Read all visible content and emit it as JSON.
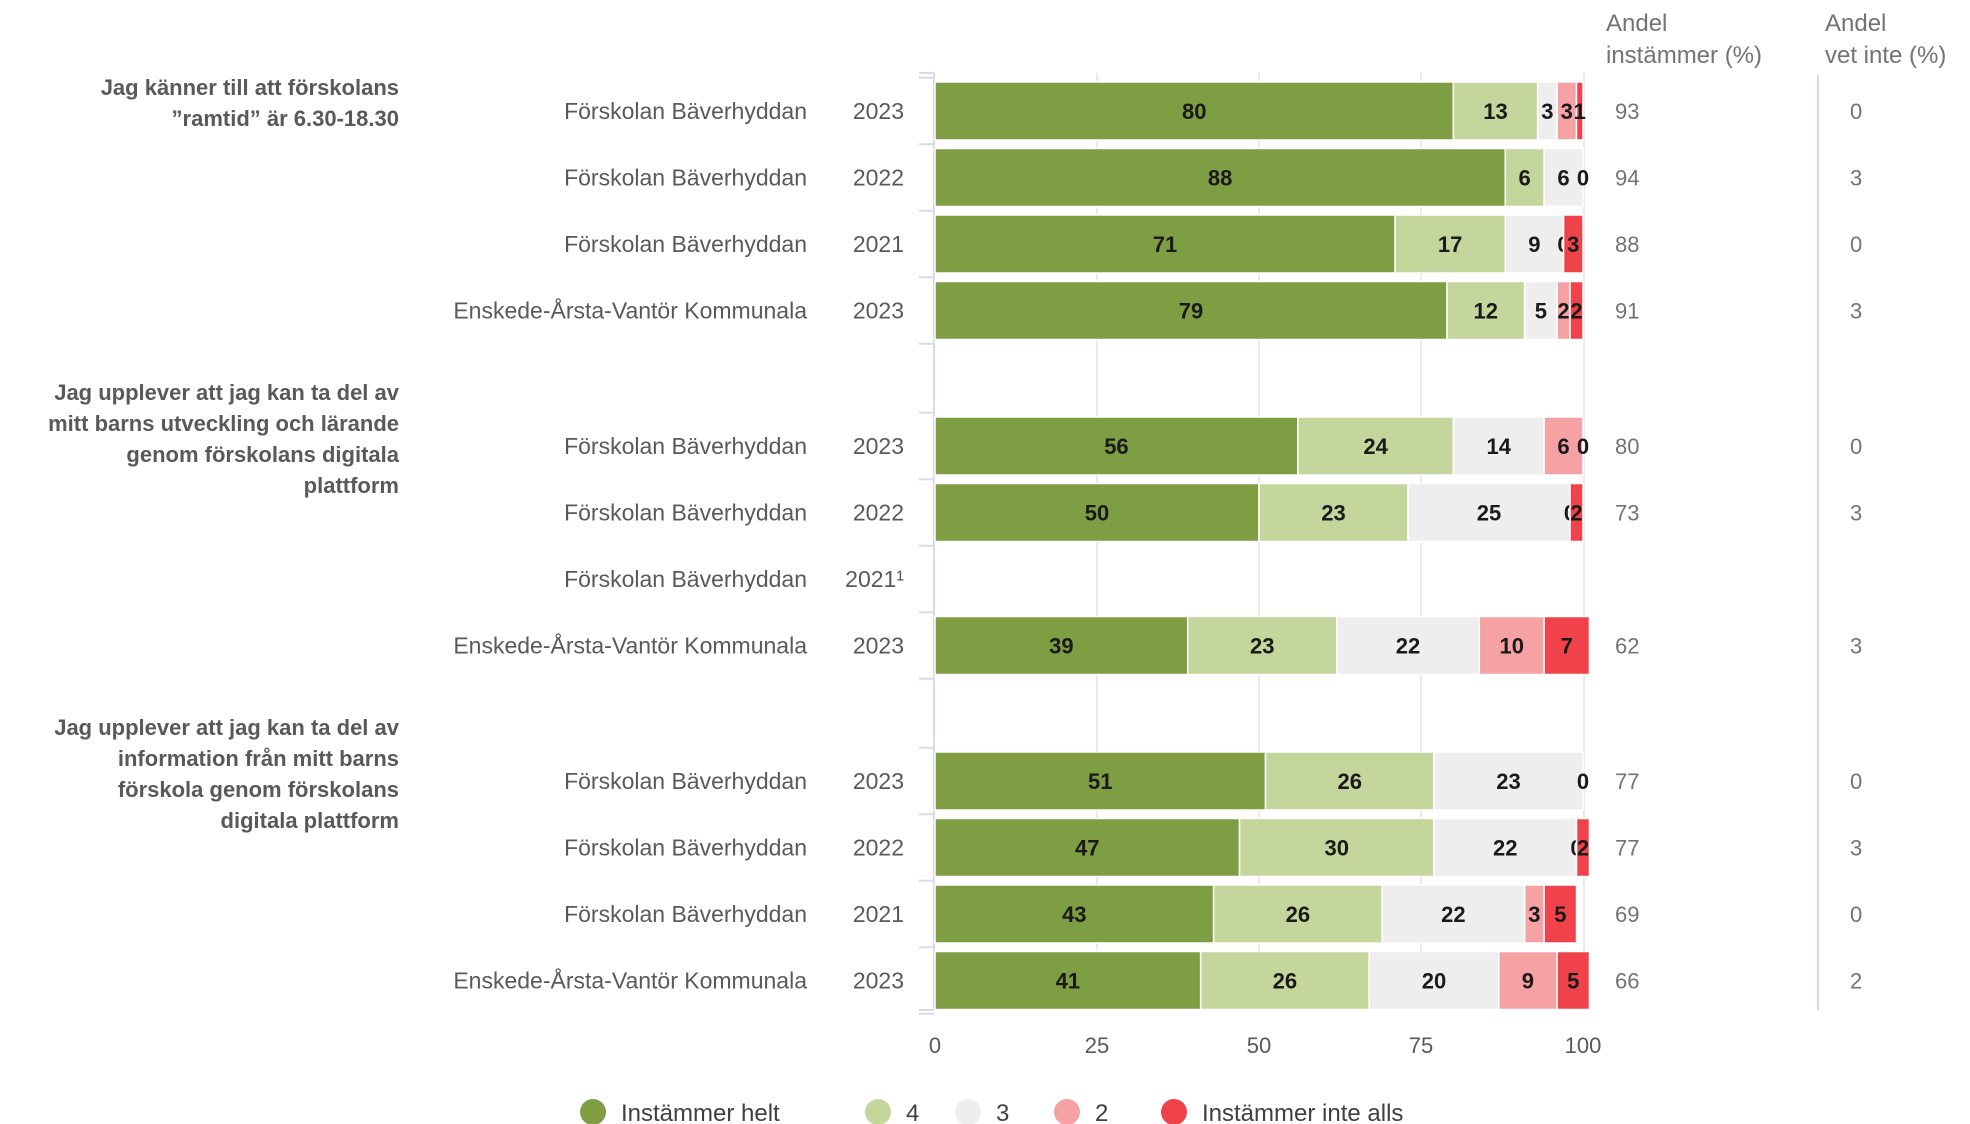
{
  "columns": {
    "agree_header": [
      "Andel",
      "instämmer (%)"
    ],
    "dontknow_header": [
      "Andel",
      "vet inte (%)"
    ]
  },
  "colors": {
    "Instämmer helt": "#7f9e44",
    "4": "#c4d69c",
    "3": "#eeeeee",
    "2": "#f6a1a4",
    "Instämmer inte alls": "#f0424a"
  },
  "chart_data": {
    "type": "bar",
    "orientation": "horizontal",
    "stacked": true,
    "xlim": [
      0,
      100
    ],
    "xticks": [
      "0",
      "25",
      "50",
      "75",
      "100"
    ],
    "grid": true,
    "legend_position": "bottom",
    "series_names": [
      "Instämmer helt",
      "4",
      "3",
      "2",
      "Instämmer inte alls"
    ],
    "groups": [
      {
        "question": [
          "Jag känner till att förskolans",
          "”ramtid” är 6.30-18.30"
        ],
        "rows": [
          {
            "name": "Förskolan Bäverhyddan",
            "year": "2023",
            "values": [
              80,
              13,
              3,
              3,
              1
            ],
            "labels": [
              "80",
              "13",
              "3",
              "3",
              "1"
            ],
            "agree": "93",
            "dontknow": "0"
          },
          {
            "name": "Förskolan Bäverhyddan",
            "year": "2022",
            "values": [
              88,
              6,
              6,
              0,
              0
            ],
            "labels": [
              "88",
              "6",
              "6",
              "0",
              ""
            ],
            "agree": "94",
            "dontknow": "3"
          },
          {
            "name": "Förskolan Bäverhyddan",
            "year": "2021",
            "values": [
              71,
              17,
              9,
              0,
              3
            ],
            "labels": [
              "71",
              "17",
              "9",
              "0",
              "3"
            ],
            "agree": "88",
            "dontknow": "0"
          },
          {
            "name": "Enskede-Årsta-Vantör Kommunala",
            "year": "2023",
            "values": [
              79,
              12,
              5,
              2,
              2
            ],
            "labels": [
              "79",
              "12",
              "5",
              "2",
              "2"
            ],
            "agree": "91",
            "dontknow": "3"
          }
        ]
      },
      {
        "question": [
          "Jag upplever att jag kan ta del av",
          "mitt barns utveckling och lärande",
          "genom förskolans digitala",
          "plattform"
        ],
        "rows": [
          {
            "name": "Förskolan Bäverhyddan",
            "year": "2023",
            "values": [
              56,
              24,
              14,
              6,
              0
            ],
            "labels": [
              "56",
              "24",
              "14",
              "6",
              "0"
            ],
            "agree": "80",
            "dontknow": "0"
          },
          {
            "name": "Förskolan Bäverhyddan",
            "year": "2022",
            "values": [
              50,
              23,
              25,
              0,
              2
            ],
            "labels": [
              "50",
              "23",
              "25",
              "0",
              "2"
            ],
            "agree": "73",
            "dontknow": "3"
          },
          {
            "name": "Förskolan Bäverhyddan",
            "year": "2021¹",
            "values": null,
            "labels": [],
            "agree": "",
            "dontknow": ""
          },
          {
            "name": "Enskede-Årsta-Vantör Kommunala",
            "year": "2023",
            "values": [
              39,
              23,
              22,
              10,
              7
            ],
            "labels": [
              "39",
              "23",
              "22",
              "10",
              "7"
            ],
            "agree": "62",
            "dontknow": "3"
          }
        ]
      },
      {
        "question": [
          "Jag upplever att jag kan ta del av",
          "information från mitt barns",
          "förskola genom förskolans",
          "digitala plattform"
        ],
        "rows": [
          {
            "name": "Förskolan Bäverhyddan",
            "year": "2023",
            "values": [
              51,
              26,
              23,
              0,
              0
            ],
            "labels": [
              "51",
              "26",
              "23",
              "0",
              ""
            ],
            "agree": "77",
            "dontknow": "0"
          },
          {
            "name": "Förskolan Bäverhyddan",
            "year": "2022",
            "values": [
              47,
              30,
              22,
              0,
              2
            ],
            "labels": [
              "47",
              "30",
              "22",
              "0",
              "2"
            ],
            "agree": "77",
            "dontknow": "3"
          },
          {
            "name": "Förskolan Bäverhyddan",
            "year": "2021",
            "values": [
              43,
              26,
              22,
              3,
              5
            ],
            "labels": [
              "43",
              "26",
              "22",
              "3",
              "5"
            ],
            "agree": "69",
            "dontknow": "0"
          },
          {
            "name": "Enskede-Årsta-Vantör Kommunala",
            "year": "2023",
            "values": [
              41,
              26,
              20,
              9,
              5
            ],
            "labels": [
              "41",
              "26",
              "20",
              "9",
              "5"
            ],
            "agree": "66",
            "dontknow": "2"
          }
        ]
      }
    ]
  }
}
